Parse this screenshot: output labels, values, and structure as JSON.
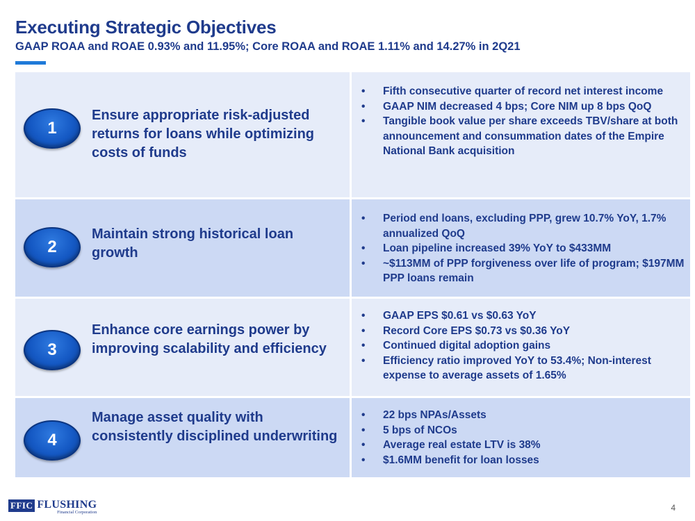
{
  "header": {
    "title": "Executing Strategic Objectives",
    "subtitle": "GAAP ROAA and ROAE 0.93% and 11.95%; Core ROAA and ROAE 1.11% and 14.27% in 2Q21"
  },
  "objectives": [
    {
      "number": "1",
      "title": "Ensure appropriate risk-adjusted returns for loans while optimizing costs of funds",
      "bullets": [
        "Fifth consecutive quarter of record net interest income",
        "GAAP NIM decreased 4 bps; Core NIM up 8 bps QoQ",
        "Tangible book value per share exceeds TBV/share at both announcement and consummation dates of the Empire National Bank acquisition"
      ]
    },
    {
      "number": "2",
      "title": "Maintain strong historical loan growth",
      "bullets": [
        "Period end loans, excluding PPP, grew 10.7% YoY, 1.7% annualized QoQ",
        "Loan pipeline increased 39% YoY to $433MM",
        "~$113MM of PPP forgiveness over life of program; $197MM PPP loans remain"
      ]
    },
    {
      "number": "3",
      "title": "Enhance core earnings power by improving scalability and efficiency",
      "bullets": [
        "GAAP EPS $0.61 vs $0.63 YoY",
        "Record Core EPS $0.73 vs $0.36 YoY",
        "Continued digital adoption gains",
        "Efficiency ratio improved YoY to 53.4%; Non-interest expense to average assets of 1.65%"
      ]
    },
    {
      "number": "4",
      "title": "Manage asset quality with consistently disciplined underwriting",
      "bullets": [
        "22 bps NPAs/Assets",
        "5 bps of NCOs",
        "Average real estate LTV is 38%",
        "$1.6MM benefit for loan losses"
      ]
    }
  ],
  "footer": {
    "logo_mark": "FFIC",
    "logo_name": "FLUSHING",
    "logo_sub": "Financial Corporation",
    "page_number": "4"
  }
}
